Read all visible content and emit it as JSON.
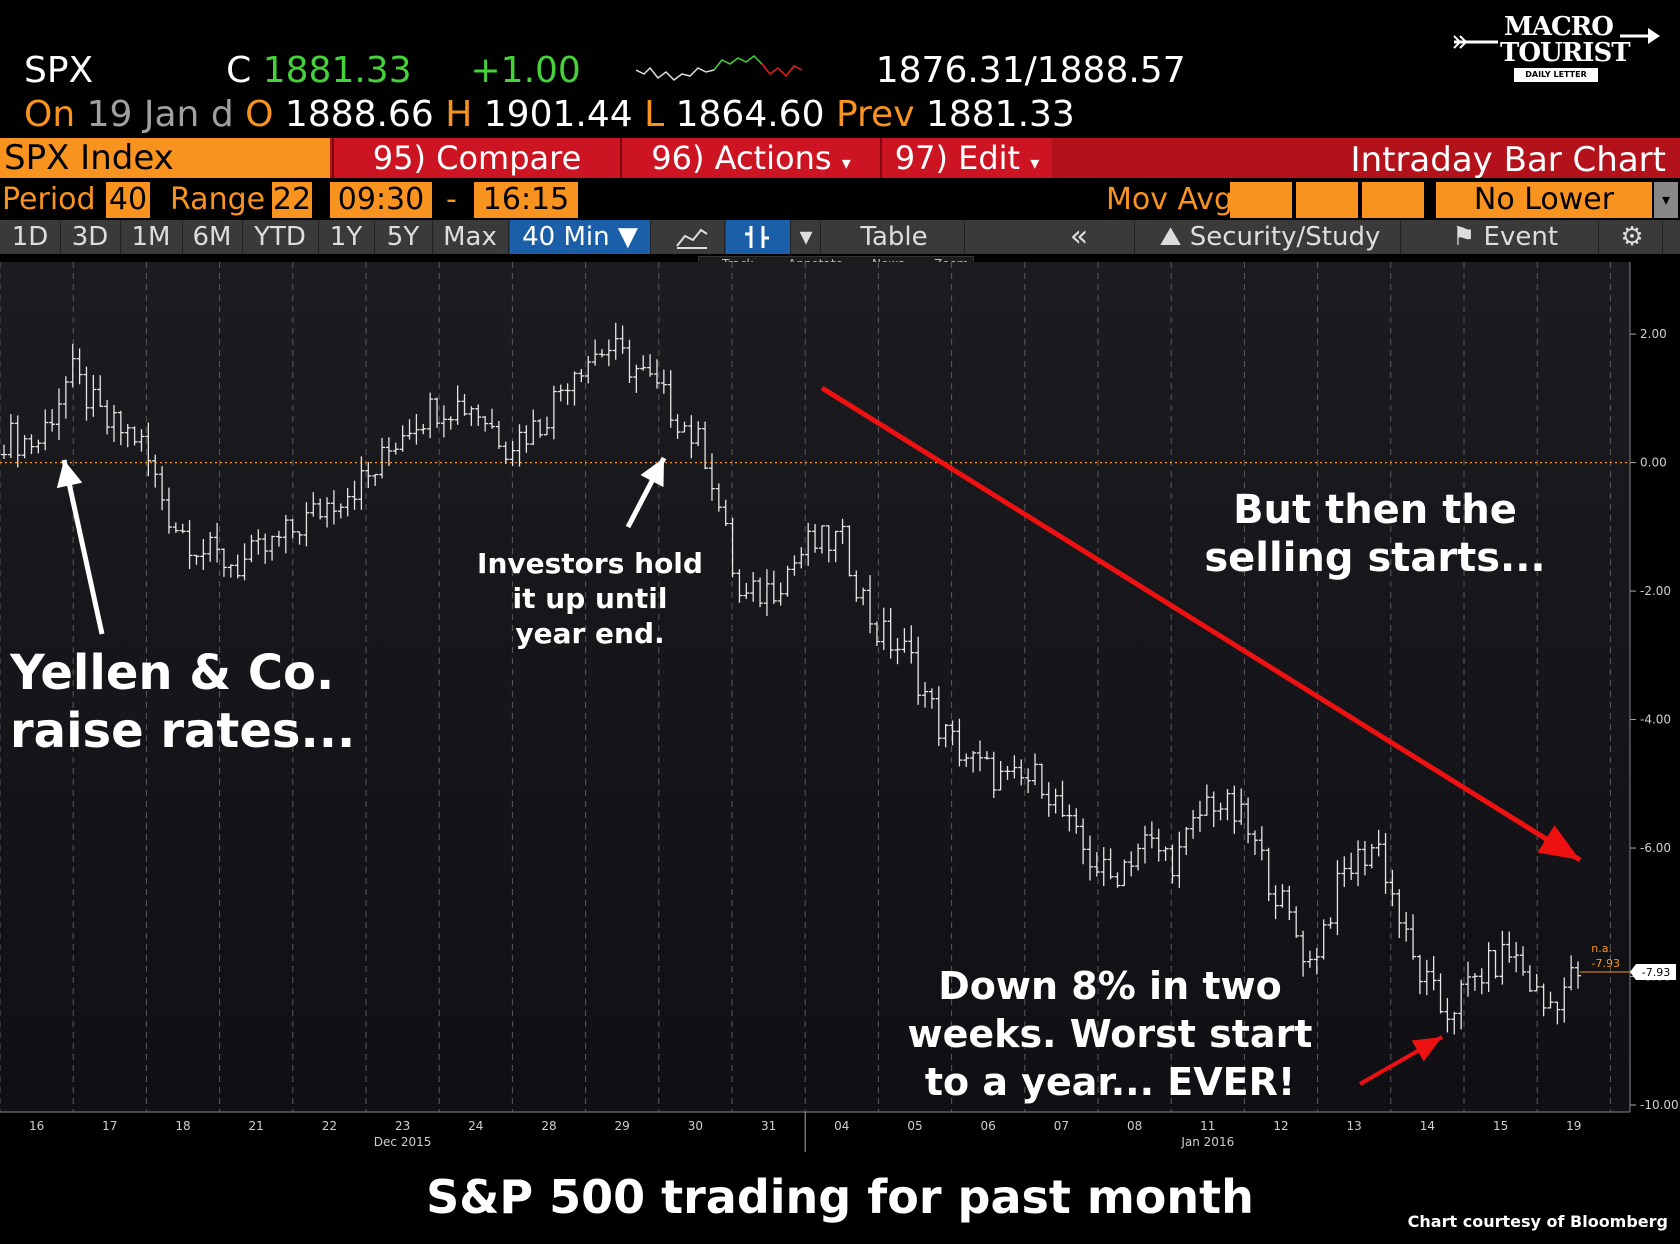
{
  "quote": {
    "ticker": "SPX",
    "c_label": "C",
    "last": "1881.33",
    "change": "+1.00",
    "range": "1876.31/1888.57",
    "on_label": "On",
    "date": "19 Jan",
    "d_label": "d",
    "o_label": "O",
    "open": "1888.66",
    "h_label": "H",
    "high": "1901.44",
    "l_label": "L",
    "low": "1864.60",
    "prev_label": "Prev",
    "prev": "1881.33"
  },
  "logo": {
    "line1": "MACRO",
    "line2": "TOURIST",
    "line3": "DAILY LETTER"
  },
  "command_bar": {
    "security": "SPX Index",
    "compare": "95) Compare",
    "actions": "96) Actions",
    "edit": "97) Edit",
    "chart_type": "Intraday Bar Chart"
  },
  "settings": {
    "period_label": "Period",
    "period": "40",
    "range_label": "Range",
    "range": "22",
    "start": "09:30",
    "dash": "-",
    "end": "16:15",
    "mov_avg_label": "Mov Avg",
    "lower_chart": "No Lower Chart"
  },
  "tabs": [
    "1D",
    "3D",
    "1M",
    "6M",
    "YTD",
    "1Y",
    "5Y",
    "Max"
  ],
  "selected_tab": "40 Min ▼",
  "toolbar": {
    "table": "Table",
    "back": "«",
    "security_study": "Security/Study",
    "event": "Event"
  },
  "mini_tools": [
    "Track",
    "Annotate",
    "News",
    "Zoom"
  ],
  "colors": {
    "orange": "#f7931e",
    "red_bar": "#cc1422",
    "green": "#45d23a",
    "arrow_red": "#ee1111"
  },
  "chart_data": {
    "type": "line",
    "title": "S&P 500 trading for past month",
    "ylim": [
      -10,
      2.5
    ],
    "y_ticks": [
      "2.00",
      "0.00",
      "-2.00",
      "-4.00",
      "-6.00",
      "-8.00",
      "-10.00"
    ],
    "x_tick_labels": [
      "16",
      "17",
      "18",
      "21",
      "22",
      "23",
      "24",
      "28",
      "29",
      "30",
      "31",
      "04",
      "05",
      "06",
      "07",
      "08",
      "11",
      "12",
      "13",
      "14",
      "15",
      "19"
    ],
    "month_labels": [
      "Dec 2015",
      "Jan 2016"
    ],
    "series": [
      {
        "values": [
          0.4,
          0.3,
          1.4,
          0.6,
          0.4,
          -0.9,
          -1.4,
          -1.6,
          -1.3,
          -0.9,
          -0.5,
          -0.2,
          0.6,
          0.9,
          0.9,
          0.3,
          0.6,
          1.5,
          1.8,
          1.4,
          0.8,
          0.1,
          -2.2,
          -1.9,
          -1.3,
          -1.2,
          -2.6,
          -3.0,
          -4.2,
          -4.7,
          -5.0,
          -4.9,
          -5.9,
          -6.5,
          -5.9,
          -6.2,
          -5.2,
          -5.6,
          -6.7,
          -7.8,
          -6.4,
          -5.9,
          -7.7,
          -8.6,
          -8.0,
          -7.6,
          -8.5,
          -7.93
        ]
      }
    ],
    "current_value_label": "-7.93",
    "na_label": "n.a.",
    "na_value": "-7.93"
  },
  "annotations": {
    "yellen": [
      "Yellen & Co.",
      "raise rates..."
    ],
    "investors": [
      "Investors hold",
      "it up until",
      "year end."
    ],
    "selling": [
      "But then the",
      "selling starts..."
    ],
    "down": [
      "Down 8% in two",
      "weeks.  Worst start",
      "to a year... EVER!"
    ]
  },
  "caption": "S&P 500 trading for past month",
  "credit": "Chart courtesy of Bloomberg"
}
